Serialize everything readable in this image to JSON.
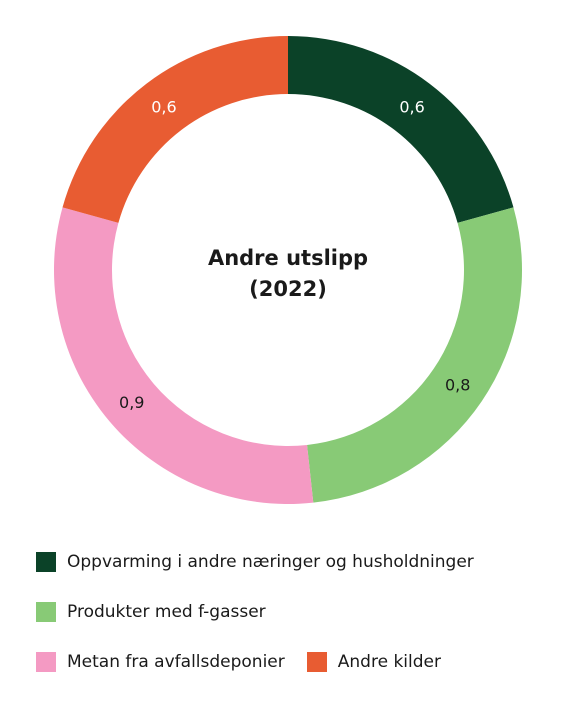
{
  "chart_data": {
    "type": "pie",
    "title": "Andre utslipp",
    "subtitle": "(2022)",
    "categories": [
      "Oppvarming i andre næringer og husholdninger",
      "Produkter med f-gasser",
      "Metan fra avfallsdeponier",
      "Andre kilder"
    ],
    "values": [
      0.6,
      0.8,
      0.9,
      0.6
    ],
    "value_labels": [
      "0,6",
      "0,8",
      "0,9",
      "0,6"
    ],
    "colors": [
      "#0b4228",
      "#88ca76",
      "#f49ac3",
      "#e85c32"
    ],
    "label_colors": [
      "#ffffff",
      "#1a1a1a",
      "#1a1a1a",
      "#ffffff"
    ],
    "legend_position": "bottom"
  },
  "legend": {
    "items": [
      {
        "label": "Oppvarming i andre næringer og husholdninger",
        "color": "#0b4228"
      },
      {
        "label": "Produkter med f-gasser",
        "color": "#88ca76"
      },
      {
        "label": "Metan fra avfallsdeponier",
        "color": "#f49ac3"
      },
      {
        "label": "Andre kilder",
        "color": "#e85c32"
      }
    ]
  }
}
